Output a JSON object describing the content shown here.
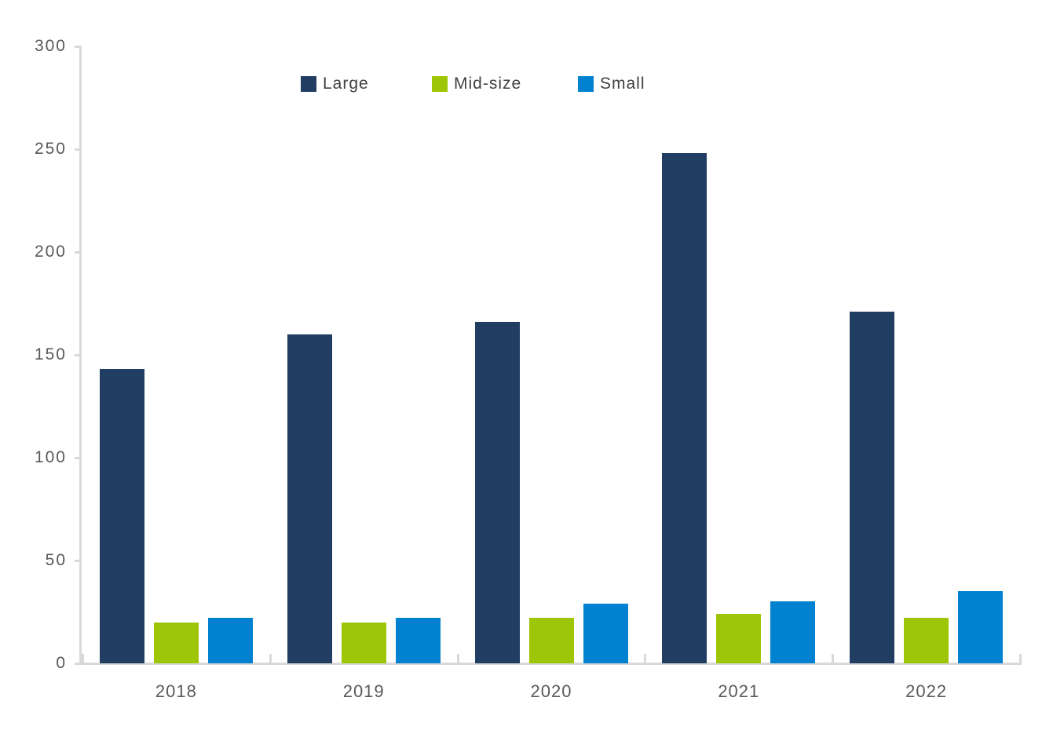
{
  "chart_data": {
    "type": "bar",
    "title": "",
    "categories": [
      "2018",
      "2019",
      "2020",
      "2021",
      "2022"
    ],
    "series": [
      {
        "name": "Large",
        "color": "#223D62",
        "values": [
          143,
          160,
          166,
          248,
          171
        ]
      },
      {
        "name": "Mid-size",
        "color": "#9EC608",
        "values": [
          20,
          20,
          22,
          24,
          22
        ]
      },
      {
        "name": "Small",
        "color": "#0082D0",
        "values": [
          22,
          22,
          29,
          30,
          35
        ]
      }
    ],
    "xlabel": "",
    "ylabel": "",
    "ylim": [
      0,
      300
    ],
    "y_ticks": [
      0,
      50,
      100,
      150,
      200,
      250,
      300
    ],
    "grid": false,
    "legend_position": "top",
    "axis_color": "#D9D9D9",
    "tick_label_color": "#595959",
    "legend_text_color": "#404040"
  }
}
